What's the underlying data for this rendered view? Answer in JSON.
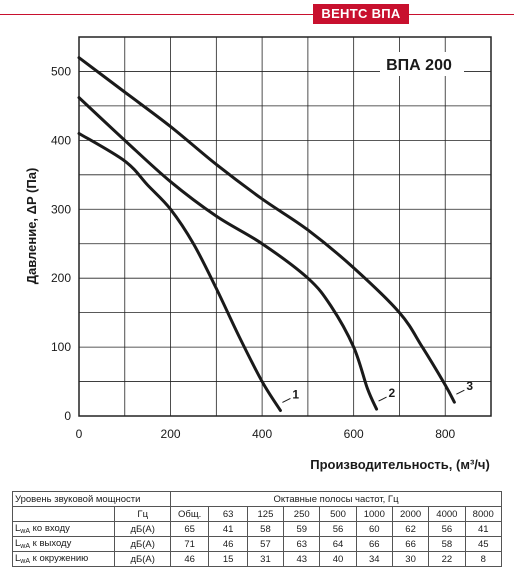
{
  "header": {
    "brand": "ВЕНТС ВПА",
    "color": "#c8102e"
  },
  "chart_data": {
    "type": "line",
    "title": "ВПА 200",
    "xlabel": "Производительность, (м³/ч)",
    "ylabel": "Давление, ΔP (Па)",
    "xlim": [
      0,
      900
    ],
    "ylim": [
      0,
      550
    ],
    "xticks": [
      0,
      200,
      400,
      600,
      800
    ],
    "yticks": [
      0,
      100,
      200,
      300,
      400,
      500
    ],
    "grid": true,
    "series": [
      {
        "name": "1",
        "points": [
          [
            0,
            410
          ],
          [
            100,
            370
          ],
          [
            150,
            335
          ],
          [
            200,
            300
          ],
          [
            250,
            250
          ],
          [
            300,
            185
          ],
          [
            350,
            115
          ],
          [
            400,
            50
          ],
          [
            440,
            8
          ]
        ]
      },
      {
        "name": "2",
        "points": [
          [
            0,
            462
          ],
          [
            100,
            400
          ],
          [
            200,
            340
          ],
          [
            300,
            290
          ],
          [
            400,
            250
          ],
          [
            500,
            200
          ],
          [
            550,
            160
          ],
          [
            600,
            100
          ],
          [
            630,
            40
          ],
          [
            650,
            10
          ]
        ]
      },
      {
        "name": "3",
        "points": [
          [
            0,
            520
          ],
          [
            100,
            470
          ],
          [
            200,
            420
          ],
          [
            300,
            365
          ],
          [
            400,
            315
          ],
          [
            500,
            270
          ],
          [
            600,
            215
          ],
          [
            700,
            150
          ],
          [
            750,
            100
          ],
          [
            800,
            45
          ],
          [
            820,
            20
          ]
        ]
      }
    ]
  },
  "table": {
    "title": "Уровень звуковой мощности",
    "bands_title": "Октавные полосы частот, Гц",
    "unit_header": "Гц",
    "total_header": "Общ.",
    "bands": [
      "63",
      "125",
      "250",
      "500",
      "1000",
      "2000",
      "4000",
      "8000"
    ],
    "rows": [
      {
        "label_main": "L",
        "label_sub": "wA",
        "label_rest": " ко входу",
        "unit": "дБ(А)",
        "total": "65",
        "values": [
          "41",
          "58",
          "59",
          "56",
          "60",
          "62",
          "56",
          "41"
        ]
      },
      {
        "label_main": "L",
        "label_sub": "wA",
        "label_rest": " к выходу",
        "unit": "дБ(А)",
        "total": "71",
        "values": [
          "46",
          "57",
          "63",
          "64",
          "66",
          "66",
          "58",
          "45"
        ]
      },
      {
        "label_main": "L",
        "label_sub": "wA",
        "label_rest": " к окружению",
        "unit": "дБ(А)",
        "total": "46",
        "values": [
          "15",
          "31",
          "43",
          "40",
          "34",
          "30",
          "22",
          "8"
        ]
      }
    ]
  }
}
